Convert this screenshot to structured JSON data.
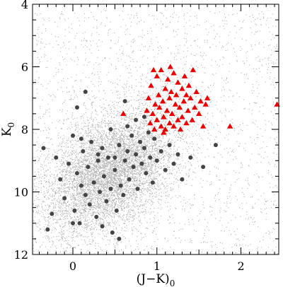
{
  "chart_data": {
    "type": "scatter",
    "title": "",
    "xlabel": "(J−K)",
    "xlabel_sub": "0",
    "ylabel": "K",
    "ylabel_sub": "0",
    "xlim": [
      -0.48,
      2.45
    ],
    "ylim": [
      12,
      4
    ],
    "y_inverted": true,
    "xticks": [
      0,
      1,
      2
    ],
    "yticks": [
      4,
      6,
      8,
      10,
      12
    ],
    "xtick_labels": [
      "0",
      "1",
      "2"
    ],
    "ytick_labels": [
      "4",
      "6",
      "8",
      "10",
      "12"
    ],
    "grid": false,
    "legend": "none",
    "colors": {
      "background_field": "#b0b0b0",
      "dark_points": "#444444",
      "red_triangles": "#ee0000"
    },
    "series": [
      {
        "marker": "small-dot",
        "color": "#b0b0b0",
        "description_of_distribution": "dense cloud of several thousand points",
        "distribution": {
          "core_center": [
            0.45,
            9.3
          ],
          "core_spread": [
            0.35,
            1.0
          ],
          "tilt": -0.5,
          "n_core": 9000,
          "n_sparse": 2200,
          "sparse_x_range": [
            -0.48,
            2.45
          ],
          "sparse_y_range": [
            4.2,
            12
          ]
        }
      },
      {
        "marker": "circle",
        "color": "#444444",
        "points": [
          [
            -0.35,
            8.6
          ],
          [
            -0.2,
            8.9
          ],
          [
            -0.15,
            9.6
          ],
          [
            -0.1,
            10.2
          ],
          [
            -0.05,
            9.1
          ],
          [
            0.0,
            8.2
          ],
          [
            0.02,
            10.6
          ],
          [
            0.05,
            9.4
          ],
          [
            0.08,
            11.0
          ],
          [
            0.1,
            9.8
          ],
          [
            0.12,
            8.7
          ],
          [
            0.15,
            10.1
          ],
          [
            0.18,
            9.2
          ],
          [
            0.2,
            10.4
          ],
          [
            0.22,
            8.4
          ],
          [
            0.25,
            9.7
          ],
          [
            0.28,
            10.8
          ],
          [
            0.3,
            9.0
          ],
          [
            0.32,
            10.0
          ],
          [
            0.35,
            8.6
          ],
          [
            0.37,
            9.5
          ],
          [
            0.4,
            10.3
          ],
          [
            0.42,
            8.9
          ],
          [
            0.45,
            9.9
          ],
          [
            0.47,
            11.3
          ],
          [
            0.5,
            9.3
          ],
          [
            0.52,
            10.6
          ],
          [
            0.55,
            8.5
          ],
          [
            0.57,
            9.8
          ],
          [
            0.6,
            10.1
          ],
          [
            0.62,
            9.0
          ],
          [
            0.65,
            8.7
          ],
          [
            0.67,
            9.6
          ],
          [
            0.7,
            8.2
          ],
          [
            0.72,
            9.2
          ],
          [
            0.75,
            8.8
          ],
          [
            0.77,
            9.9
          ],
          [
            0.8,
            8.4
          ],
          [
            0.82,
            9.1
          ],
          [
            0.85,
            8.6
          ],
          [
            0.87,
            9.4
          ],
          [
            0.9,
            8.1
          ],
          [
            0.92,
            8.9
          ],
          [
            0.95,
            9.7
          ],
          [
            0.97,
            8.3
          ],
          [
            1.0,
            9.0
          ],
          [
            1.05,
            8.7
          ],
          [
            1.1,
            9.3
          ],
          [
            1.15,
            8.5
          ],
          [
            1.2,
            9.1
          ],
          [
            1.25,
            8.8
          ],
          [
            1.3,
            9.6
          ],
          [
            1.4,
            8.9
          ],
          [
            1.55,
            9.2
          ],
          [
            1.7,
            8.5
          ],
          [
            -0.3,
            11.2
          ],
          [
            -0.25,
            10.7
          ],
          [
            0.0,
            11.0
          ],
          [
            0.35,
            11.1
          ],
          [
            0.55,
            11.5
          ],
          [
            0.1,
            8.3
          ],
          [
            0.3,
            8.8
          ],
          [
            0.5,
            8.9
          ],
          [
            0.65,
            7.9
          ],
          [
            0.75,
            7.7
          ],
          [
            0.85,
            7.6
          ],
          [
            0.62,
            7.1
          ],
          [
            0.15,
            6.8
          ],
          [
            0.05,
            7.3
          ],
          [
            0.45,
            8.0
          ]
        ]
      },
      {
        "marker": "triangle",
        "color": "#ee0000",
        "points": [
          [
            0.88,
            7.4
          ],
          [
            0.9,
            7.0
          ],
          [
            0.92,
            7.8
          ],
          [
            0.93,
            6.6
          ],
          [
            0.95,
            7.5
          ],
          [
            0.97,
            8.0
          ],
          [
            0.98,
            7.2
          ],
          [
            1.0,
            6.3
          ],
          [
            1.0,
            7.7
          ],
          [
            1.02,
            6.9
          ],
          [
            1.03,
            7.3
          ],
          [
            1.05,
            7.9
          ],
          [
            1.05,
            6.1
          ],
          [
            1.07,
            7.1
          ],
          [
            1.08,
            7.6
          ],
          [
            1.1,
            6.7
          ],
          [
            1.1,
            8.0
          ],
          [
            1.12,
            7.4
          ],
          [
            1.13,
            6.4
          ],
          [
            1.15,
            7.8
          ],
          [
            1.15,
            7.0
          ],
          [
            1.17,
            6.8
          ],
          [
            1.18,
            7.5
          ],
          [
            1.2,
            6.2
          ],
          [
            1.2,
            7.9
          ],
          [
            1.22,
            7.2
          ],
          [
            1.23,
            6.9
          ],
          [
            1.25,
            7.7
          ],
          [
            1.25,
            6.5
          ],
          [
            1.27,
            7.3
          ],
          [
            1.28,
            8.0
          ],
          [
            1.3,
            6.7
          ],
          [
            1.3,
            7.6
          ],
          [
            1.32,
            7.1
          ],
          [
            1.33,
            6.3
          ],
          [
            1.35,
            7.8
          ],
          [
            1.35,
            6.9
          ],
          [
            1.37,
            7.4
          ],
          [
            1.38,
            6.6
          ],
          [
            1.4,
            7.0
          ],
          [
            1.42,
            7.7
          ],
          [
            1.43,
            6.1
          ],
          [
            1.45,
            7.3
          ],
          [
            1.47,
            6.8
          ],
          [
            1.5,
            7.5
          ],
          [
            1.52,
            7.1
          ],
          [
            1.55,
            7.9
          ],
          [
            1.58,
            7.2
          ],
          [
            1.6,
            7.0
          ],
          [
            1.87,
            7.9
          ],
          [
            2.43,
            7.2
          ],
          [
            0.6,
            7.5
          ],
          [
            0.96,
            6.1
          ],
          [
            1.16,
            6.0
          ],
          [
            1.08,
            8.1
          ]
        ]
      }
    ]
  }
}
